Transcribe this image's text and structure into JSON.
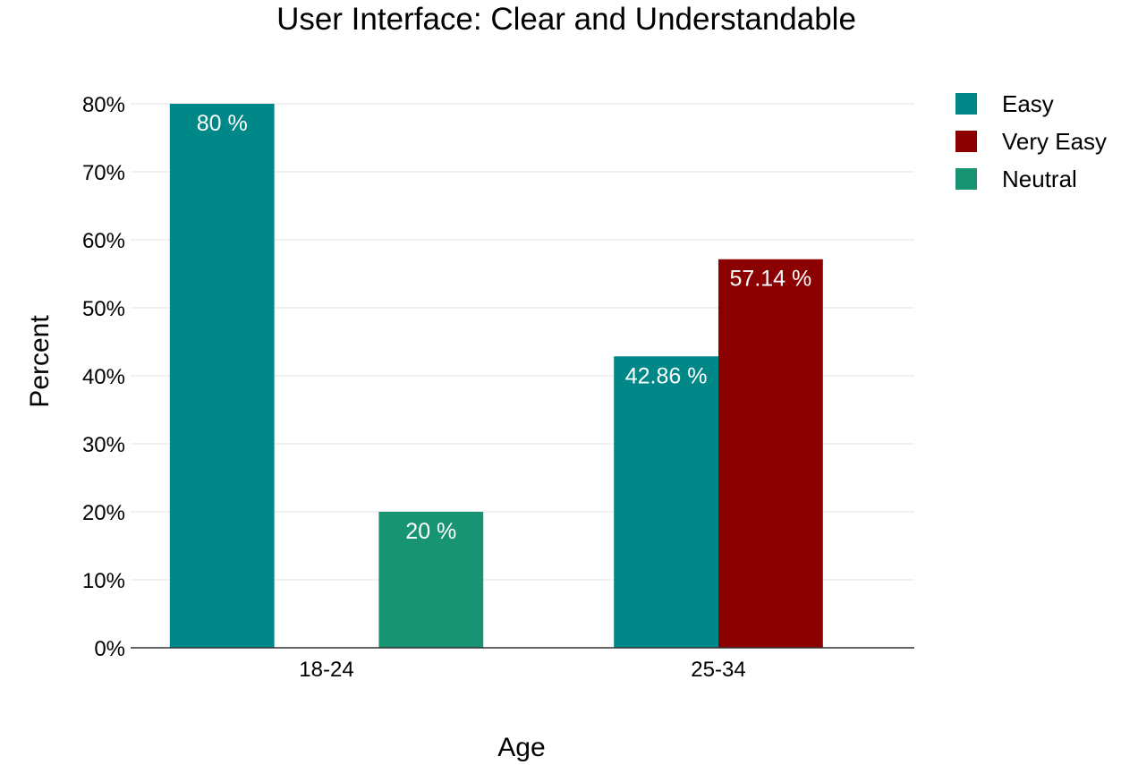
{
  "chart_data": {
    "type": "bar",
    "title": "User Interface: Clear and Understandable",
    "xlabel": "Age",
    "ylabel": "Percent",
    "categories": [
      "18-24",
      "25-34"
    ],
    "ylim": [
      0,
      80
    ],
    "yticks": [
      0,
      10,
      20,
      30,
      40,
      50,
      60,
      70,
      80
    ],
    "ytick_labels": [
      "0%",
      "10%",
      "20%",
      "30%",
      "40%",
      "50%",
      "60%",
      "70%",
      "80%"
    ],
    "grid": true,
    "legend_position": "top-right",
    "series": [
      {
        "name": "Easy",
        "color": "#008787",
        "values": [
          80,
          42.86
        ],
        "labels": [
          "80 %",
          "42.86 %"
        ]
      },
      {
        "name": "Very Easy",
        "color": "#8b0000",
        "values": [
          null,
          57.14
        ],
        "labels": [
          null,
          "57.14 %"
        ]
      },
      {
        "name": "Neutral",
        "color": "#189472",
        "values": [
          20,
          null
        ],
        "labels": [
          "20 %",
          null
        ]
      }
    ]
  }
}
